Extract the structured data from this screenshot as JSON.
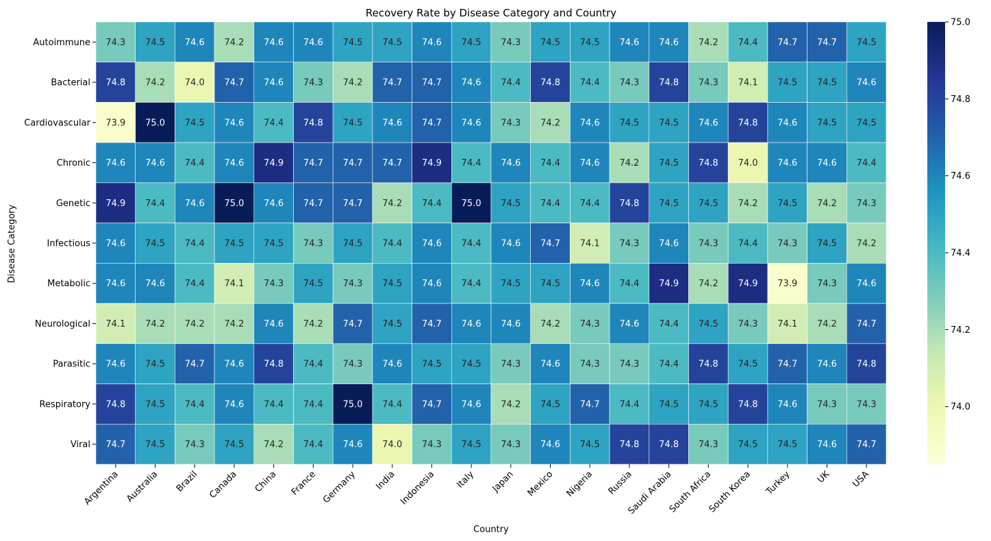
{
  "chart_data": {
    "type": "heatmap",
    "title": "Recovery Rate by Disease Category and Country",
    "xlabel": "Country",
    "ylabel": "Disease Category",
    "colormap": "YlGnBu",
    "color_range": [
      73.85,
      75.0
    ],
    "colorbar_ticks": [
      "74.0",
      "74.2",
      "74.4",
      "74.6",
      "74.8",
      "75.0"
    ],
    "x": [
      "Argentina",
      "Australia",
      "Brazil",
      "Canada",
      "China",
      "France",
      "Germany",
      "India",
      "Indonesia",
      "Italy",
      "Japan",
      "Mexico",
      "Nigeria",
      "Russia",
      "Saudi Arabia",
      "South Africa",
      "South Korea",
      "Turkey",
      "UK",
      "USA"
    ],
    "y": [
      "Autoimmune",
      "Bacterial",
      "Cardiovascular",
      "Chronic",
      "Genetic",
      "Infectious",
      "Metabolic",
      "Neurological",
      "Parasitic",
      "Respiratory",
      "Viral"
    ],
    "values": [
      [
        "74.3",
        "74.5",
        "74.6",
        "74.2",
        "74.6",
        "74.6",
        "74.5",
        "74.5",
        "74.6",
        "74.5",
        "74.3",
        "74.5",
        "74.5",
        "74.6",
        "74.6",
        "74.2",
        "74.4",
        "74.7",
        "74.7",
        "74.5"
      ],
      [
        "74.8",
        "74.2",
        "74.0",
        "74.7",
        "74.6",
        "74.3",
        "74.2",
        "74.7",
        "74.7",
        "74.6",
        "74.4",
        "74.8",
        "74.4",
        "74.3",
        "74.8",
        "74.3",
        "74.1",
        "74.5",
        "74.5",
        "74.6"
      ],
      [
        "73.9",
        "75.0",
        "74.5",
        "74.6",
        "74.4",
        "74.8",
        "74.5",
        "74.6",
        "74.7",
        "74.6",
        "74.3",
        "74.2",
        "74.6",
        "74.5",
        "74.5",
        "74.6",
        "74.8",
        "74.6",
        "74.5",
        "74.5"
      ],
      [
        "74.6",
        "74.6",
        "74.4",
        "74.6",
        "74.9",
        "74.7",
        "74.7",
        "74.7",
        "74.9",
        "74.4",
        "74.6",
        "74.4",
        "74.6",
        "74.2",
        "74.5",
        "74.8",
        "74.0",
        "74.6",
        "74.6",
        "74.4"
      ],
      [
        "74.9",
        "74.4",
        "74.6",
        "75.0",
        "74.6",
        "74.7",
        "74.7",
        "74.2",
        "74.4",
        "75.0",
        "74.5",
        "74.4",
        "74.4",
        "74.8",
        "74.5",
        "74.5",
        "74.2",
        "74.5",
        "74.2",
        "74.3"
      ],
      [
        "74.6",
        "74.5",
        "74.4",
        "74.5",
        "74.5",
        "74.3",
        "74.5",
        "74.4",
        "74.6",
        "74.4",
        "74.6",
        "74.7",
        "74.1",
        "74.3",
        "74.6",
        "74.3",
        "74.4",
        "74.3",
        "74.5",
        "74.2"
      ],
      [
        "74.6",
        "74.6",
        "74.4",
        "74.1",
        "74.3",
        "74.5",
        "74.3",
        "74.5",
        "74.6",
        "74.4",
        "74.5",
        "74.5",
        "74.6",
        "74.4",
        "74.9",
        "74.2",
        "74.9",
        "73.9",
        "74.3",
        "74.6"
      ],
      [
        "74.1",
        "74.2",
        "74.2",
        "74.2",
        "74.6",
        "74.2",
        "74.7",
        "74.5",
        "74.7",
        "74.6",
        "74.6",
        "74.2",
        "74.3",
        "74.6",
        "74.4",
        "74.5",
        "74.3",
        "74.1",
        "74.2",
        "74.7"
      ],
      [
        "74.6",
        "74.5",
        "74.7",
        "74.6",
        "74.8",
        "74.4",
        "74.3",
        "74.6",
        "74.5",
        "74.5",
        "74.3",
        "74.6",
        "74.3",
        "74.3",
        "74.4",
        "74.8",
        "74.5",
        "74.7",
        "74.6",
        "74.8"
      ],
      [
        "74.8",
        "74.5",
        "74.4",
        "74.6",
        "74.4",
        "74.4",
        "75.0",
        "74.4",
        "74.7",
        "74.6",
        "74.2",
        "74.5",
        "74.7",
        "74.4",
        "74.5",
        "74.5",
        "74.8",
        "74.6",
        "74.3",
        "74.3"
      ],
      [
        "74.7",
        "74.5",
        "74.3",
        "74.5",
        "74.2",
        "74.4",
        "74.6",
        "74.0",
        "74.3",
        "74.5",
        "74.3",
        "74.6",
        "74.5",
        "74.8",
        "74.8",
        "74.3",
        "74.5",
        "74.5",
        "74.6",
        "74.7"
      ]
    ]
  }
}
